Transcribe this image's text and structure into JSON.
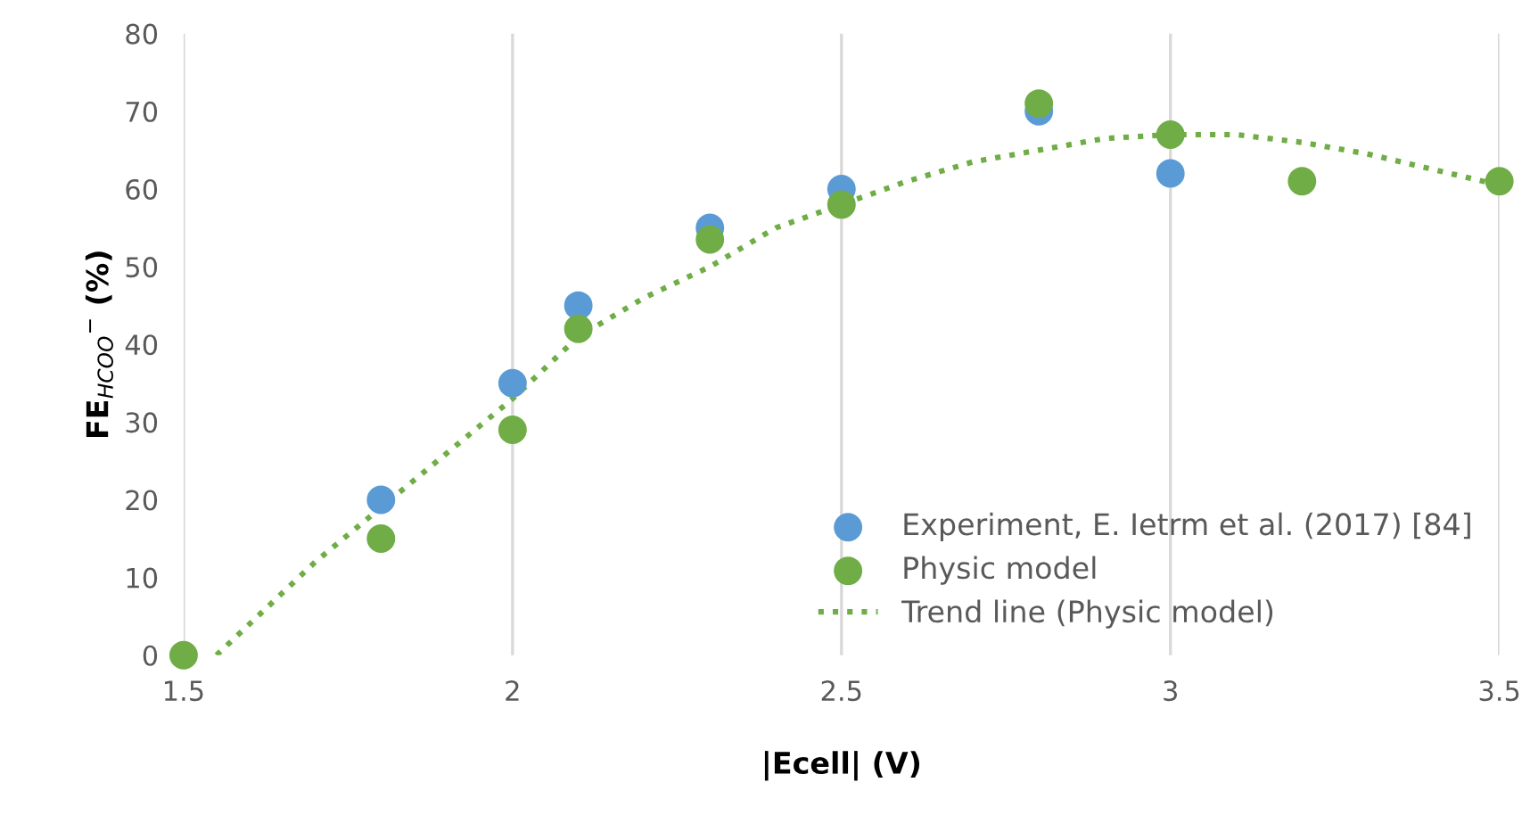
{
  "chart_data": {
    "type": "scatter",
    "xlabel": "|Ecell| (V)",
    "ylabel": "FE$_{HCOO}$$^{−}$ (%)",
    "xlim": [
      1.5,
      3.5
    ],
    "xticks": [
      1.5,
      2,
      2.5,
      3,
      3.5
    ],
    "ylim": [
      0,
      80
    ],
    "yticks": [
      0,
      10,
      20,
      30,
      40,
      50,
      60,
      70,
      80
    ],
    "grid": "x",
    "legend": "bottom right",
    "marker": "circle",
    "series": [
      {
        "name": "Experiment, E. Ietrm et al. (2017) [84]",
        "color": "#5b9bd5",
        "x": [
          1.8,
          2,
          2.1,
          2.3,
          2.5,
          2.8,
          3
        ],
        "values": [
          20,
          35,
          45,
          55,
          60,
          70,
          62
        ]
      },
      {
        "name": "Physic model",
        "color": "#70ad47",
        "x": [
          1.5,
          1.8,
          2,
          2.1,
          2.3,
          2.5,
          2.8,
          3,
          3.2,
          3.5
        ],
        "values": [
          0,
          15,
          29,
          42,
          53.5,
          58,
          71,
          67,
          61,
          61
        ]
      },
      {
        "name": "Trend line (Physic model)",
        "type": "line",
        "marker": "none",
        "line_style": "dotted",
        "color": "#70ad47",
        "x": [
          1.55,
          1.7,
          1.8,
          2,
          2.1,
          2.2,
          2.3,
          2.4,
          2.5,
          2.6,
          2.7,
          2.8,
          2.9,
          3,
          3.1,
          3.2,
          3.3,
          3.4,
          3.5
        ],
        "values": [
          0,
          12,
          19,
          33,
          41,
          46,
          50,
          55,
          58,
          61,
          63.5,
          65,
          66.5,
          67,
          67,
          66,
          64.5,
          62.5,
          60.5
        ]
      }
    ]
  }
}
